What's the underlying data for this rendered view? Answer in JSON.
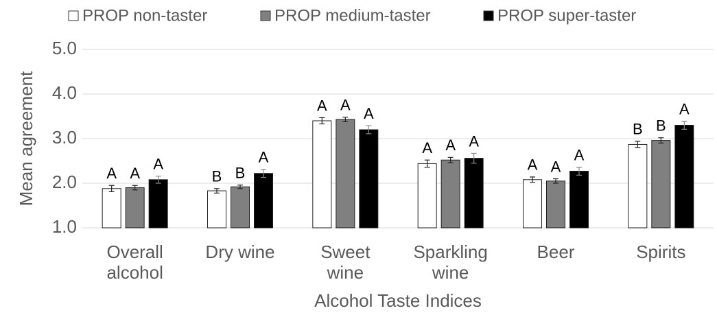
{
  "chart_data": {
    "type": "bar",
    "x_label": "Alcohol Taste Indices",
    "y_label": "Mean agreement",
    "categories": [
      "Overall alcohol",
      "Dry wine",
      "Sweet wine",
      "Sparkling wine",
      "Beer",
      "Spirits"
    ],
    "series": [
      {
        "name": "PROP non-taster",
        "color": "#ffffff",
        "values": [
          1.88,
          1.83,
          3.4,
          2.44,
          2.08,
          2.87
        ],
        "errors": [
          0.07,
          0.05,
          0.07,
          0.08,
          0.06,
          0.07
        ],
        "labels": [
          "A",
          "B",
          "A",
          "A",
          "A",
          "B"
        ]
      },
      {
        "name": "PROP medium-taster",
        "color": "#808080",
        "values": [
          1.9,
          1.92,
          3.43,
          2.52,
          2.05,
          2.96
        ],
        "errors": [
          0.05,
          0.04,
          0.05,
          0.06,
          0.05,
          0.06
        ],
        "labels": [
          "A",
          "B",
          "A",
          "A",
          "A",
          "B"
        ]
      },
      {
        "name": "PROP super-taster",
        "color": "#000000",
        "values": [
          2.08,
          2.22,
          3.2,
          2.56,
          2.27,
          3.3
        ],
        "errors": [
          0.08,
          0.09,
          0.09,
          0.11,
          0.09,
          0.09
        ],
        "labels": [
          "A",
          "A",
          "A",
          "A",
          "A",
          "A"
        ]
      }
    ],
    "ylim": [
      1,
      5
    ],
    "yticks": [
      {
        "value": 1,
        "label": "1.0"
      },
      {
        "value": 2,
        "label": "2.0"
      },
      {
        "value": 3,
        "label": "3.0"
      },
      {
        "value": 4,
        "label": "4.0"
      },
      {
        "value": 5,
        "label": "5.0"
      }
    ],
    "grid": true,
    "legend": "top"
  }
}
